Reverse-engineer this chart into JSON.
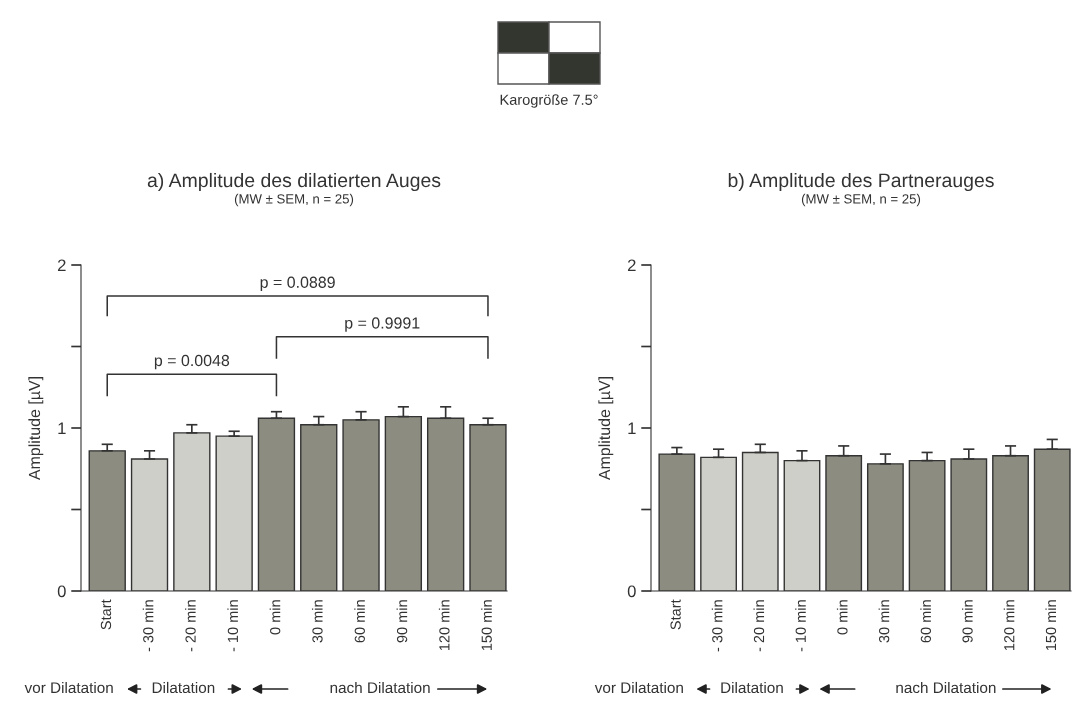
{
  "chart_data": [
    {
      "type": "bar",
      "title": "a) Amplitude des dilatierten Auges",
      "subtitle": "(MW ± SEM, n = 25)",
      "ylabel": "Amplitude [µV]",
      "categories": [
        "Start",
        "- 30 min",
        "- 20 min",
        "- 10 min",
        "0 min",
        "30 min",
        "60 min",
        "90 min",
        "120 min",
        "150 min"
      ],
      "values": [
        0.86,
        0.81,
        0.97,
        0.95,
        1.06,
        1.02,
        1.05,
        1.07,
        1.06,
        1.02
      ],
      "errors": [
        [
          0.86,
          0.9
        ],
        [
          0.81,
          0.86
        ],
        [
          0.97,
          1.02
        ],
        [
          0.95,
          0.98
        ],
        [
          1.06,
          1.1
        ],
        [
          1.02,
          1.07
        ],
        [
          1.05,
          1.1
        ],
        [
          1.07,
          1.13
        ],
        [
          1.06,
          1.13
        ],
        [
          1.02,
          1.06
        ]
      ],
      "colors": [
        "#8c8c80",
        "#cfcfc9",
        "#cfcfc9",
        "#cfcfc9",
        "#8c8c80",
        "#8c8c80",
        "#8c8c80",
        "#8c8c80",
        "#8c8c80",
        "#8c8c80"
      ],
      "ylim": [
        0,
        2
      ],
      "yticks": [
        0,
        1,
        2
      ],
      "grid": false,
      "legend": false,
      "annotations": [
        "p = 0.0048",
        "p = 0.9991",
        "p = 0.0889",
        "vor Dilatation",
        "Dilatation",
        "nach Dilatation",
        "Karogröße 7.5°"
      ]
    },
    {
      "type": "bar",
      "title": "b) Amplitude des Partnerauges",
      "subtitle": "(MW ± SEM, n = 25)",
      "ylabel": "Amplitude [µV]",
      "categories": [
        "Start",
        "- 30 min",
        "- 20 min",
        "- 10 min",
        "0 min",
        "30 min",
        "60 min",
        "90 min",
        "120 min",
        "150 min"
      ],
      "values": [
        0.84,
        0.82,
        0.85,
        0.8,
        0.83,
        0.78,
        0.8,
        0.81,
        0.83,
        0.87
      ],
      "errors": [
        [
          0.84,
          0.88
        ],
        [
          0.82,
          0.87
        ],
        [
          0.85,
          0.9
        ],
        [
          0.8,
          0.86
        ],
        [
          0.83,
          0.89
        ],
        [
          0.78,
          0.84
        ],
        [
          0.8,
          0.85
        ],
        [
          0.81,
          0.87
        ],
        [
          0.83,
          0.89
        ],
        [
          0.87,
          0.93
        ]
      ],
      "colors": [
        "#8c8c80",
        "#cfcfc9",
        "#cfcfc9",
        "#cfcfc9",
        "#8c8c80",
        "#8c8c80",
        "#8c8c80",
        "#8c8c80",
        "#8c8c80",
        "#8c8c80"
      ],
      "ylim": [
        0,
        2
      ],
      "yticks": [
        0,
        1,
        2
      ],
      "grid": false,
      "legend": false,
      "annotations": [
        "vor Dilatation",
        "Dilatation",
        "nach Dilatation"
      ]
    }
  ]
}
